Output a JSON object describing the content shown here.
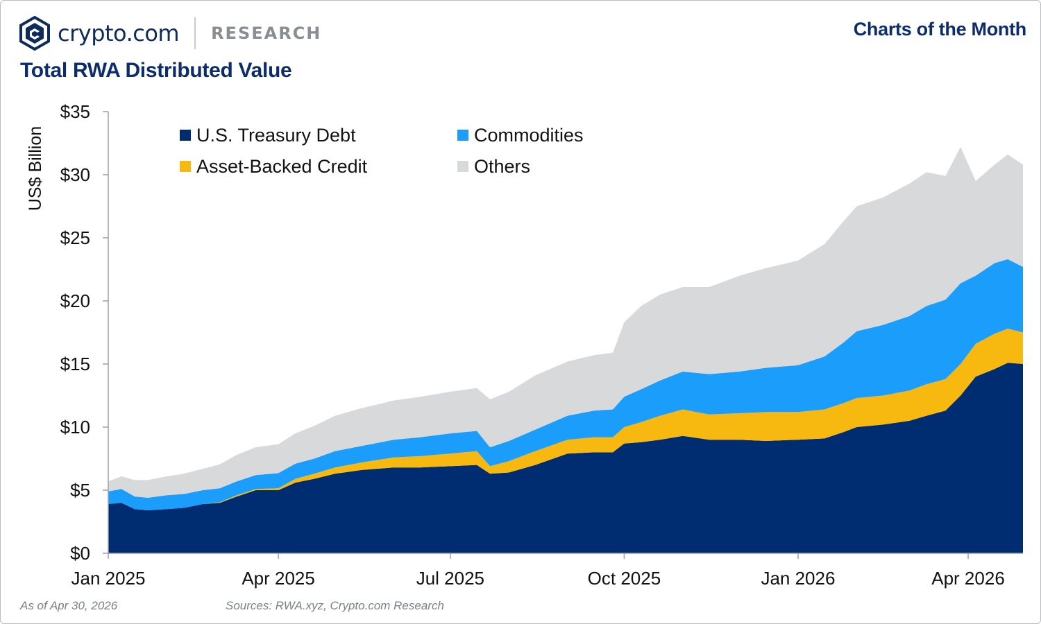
{
  "header": {
    "brand": "crypto.com",
    "section": "RESEARCH",
    "series_title": "Charts of the Month",
    "chart_title": "Total RWA Distributed Value"
  },
  "footer": {
    "as_of": "As of Apr 30, 2026",
    "sources": "Sources: RWA.xyz, Crypto.com Research"
  },
  "colors": {
    "treasury": "#002d72",
    "commodities": "#1a9dfb",
    "abc": "#f7b90f",
    "others": "#d8d9da",
    "axis": "#9b9fa5",
    "text": "#111111"
  },
  "chart_data": {
    "type": "area",
    "stacked": true,
    "title": "Total RWA Distributed Value",
    "ylabel": "US$ Billion",
    "ylim": [
      0,
      35
    ],
    "yticks": [
      0,
      5,
      10,
      15,
      20,
      25,
      30,
      35
    ],
    "ytick_labels": [
      "$0",
      "$5",
      "$10",
      "$15",
      "$20",
      "$25",
      "$30",
      "$35"
    ],
    "xlim": [
      "2025-01-01",
      "2026-04-30"
    ],
    "xticks": [
      "2025-01-01",
      "2025-04-01",
      "2025-07-01",
      "2025-10-01",
      "2026-01-01",
      "2026-04-01"
    ],
    "xtick_labels": [
      "Jan 2025",
      "Apr 2025",
      "Jul 2025",
      "Oct 2025",
      "Jan 2026",
      "Apr 2026"
    ],
    "grid": false,
    "legend": "top-left",
    "x": [
      "2025-01-01",
      "2025-01-08",
      "2025-01-15",
      "2025-01-22",
      "2025-02-01",
      "2025-02-10",
      "2025-02-20",
      "2025-03-01",
      "2025-03-10",
      "2025-03-20",
      "2025-04-01",
      "2025-04-10",
      "2025-04-20",
      "2025-05-01",
      "2025-05-15",
      "2025-06-01",
      "2025-06-15",
      "2025-07-01",
      "2025-07-15",
      "2025-07-22",
      "2025-08-01",
      "2025-08-15",
      "2025-09-01",
      "2025-09-15",
      "2025-09-25",
      "2025-10-01",
      "2025-10-10",
      "2025-10-20",
      "2025-11-01",
      "2025-11-15",
      "2025-12-01",
      "2025-12-15",
      "2026-01-01",
      "2026-01-15",
      "2026-01-25",
      "2026-02-01",
      "2026-02-15",
      "2026-03-01",
      "2026-03-10",
      "2026-03-20",
      "2026-03-28",
      "2026-04-05",
      "2026-04-15",
      "2026-04-22",
      "2026-04-30"
    ],
    "series": [
      {
        "name": "U.S. Treasury Debt",
        "values": [
          3.9,
          4.0,
          3.5,
          3.4,
          3.5,
          3.6,
          3.9,
          4.0,
          4.5,
          5.0,
          5.0,
          5.6,
          5.9,
          6.3,
          6.6,
          6.8,
          6.8,
          6.9,
          7.0,
          6.3,
          6.4,
          7.0,
          7.9,
          8.0,
          8.0,
          8.7,
          8.8,
          9.0,
          9.3,
          9.0,
          9.0,
          8.9,
          9.0,
          9.1,
          9.6,
          10.0,
          10.2,
          10.5,
          10.9,
          11.3,
          12.5,
          14.0,
          14.6,
          15.1,
          15.0
        ]
      },
      {
        "name": "Asset-Backed Credit",
        "values": [
          0.0,
          0.0,
          0.0,
          0.0,
          0.0,
          0.0,
          0.0,
          0.05,
          0.1,
          0.1,
          0.15,
          0.3,
          0.4,
          0.5,
          0.6,
          0.8,
          0.9,
          1.0,
          1.1,
          0.6,
          0.9,
          1.1,
          1.1,
          1.2,
          1.2,
          1.3,
          1.6,
          1.9,
          2.1,
          2.0,
          2.1,
          2.3,
          2.2,
          2.3,
          2.3,
          2.3,
          2.3,
          2.4,
          2.5,
          2.5,
          2.5,
          2.6,
          2.8,
          2.7,
          2.5
        ]
      },
      {
        "name": "Commodities",
        "values": [
          1.0,
          1.1,
          1.0,
          1.0,
          1.1,
          1.1,
          1.1,
          1.1,
          1.1,
          1.1,
          1.2,
          1.2,
          1.2,
          1.3,
          1.3,
          1.4,
          1.5,
          1.6,
          1.6,
          1.5,
          1.6,
          1.7,
          1.9,
          2.1,
          2.2,
          2.4,
          2.6,
          2.8,
          3.0,
          3.2,
          3.3,
          3.5,
          3.7,
          4.2,
          4.8,
          5.3,
          5.6,
          5.9,
          6.2,
          6.3,
          6.4,
          5.4,
          5.6,
          5.5,
          5.2
        ]
      },
      {
        "name": "Others",
        "values": [
          0.8,
          1.0,
          1.3,
          1.4,
          1.5,
          1.6,
          1.7,
          1.9,
          2.1,
          2.2,
          2.3,
          2.4,
          2.6,
          2.8,
          3.0,
          3.1,
          3.2,
          3.3,
          3.4,
          3.8,
          3.9,
          4.3,
          4.3,
          4.4,
          4.5,
          5.9,
          6.6,
          6.8,
          6.7,
          6.9,
          7.6,
          7.9,
          8.3,
          8.9,
          9.6,
          9.9,
          10.1,
          10.5,
          10.6,
          9.8,
          10.8,
          7.5,
          7.8,
          8.3,
          8.1
        ]
      }
    ]
  }
}
